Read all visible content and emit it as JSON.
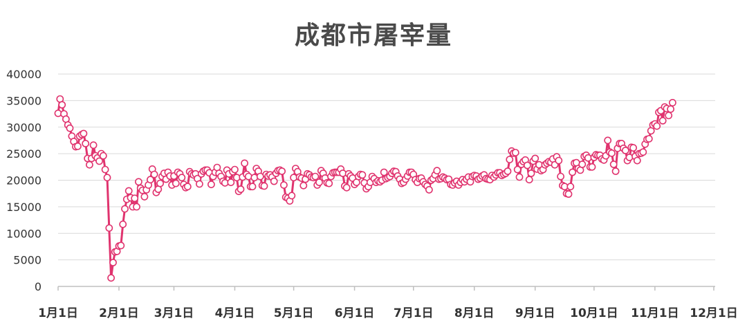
{
  "chart_data": {
    "type": "line",
    "title": "成都市屠宰量",
    "xlabel": "",
    "ylabel": "",
    "x_tick_labels": [
      "1月1日",
      "2月1日",
      "3月1日",
      "4月1日",
      "5月1日",
      "6月1日",
      "7月1日",
      "8月1日",
      "9月1日",
      "10月1日",
      "11月1日",
      "12月1日"
    ],
    "y_ticks": [
      0,
      5000,
      10000,
      15000,
      20000,
      25000,
      30000,
      35000,
      40000
    ],
    "ylim": [
      0,
      40000
    ],
    "x_unit": "day of year (1 = Jan 1)",
    "xlim": [
      1,
      335
    ],
    "grid": true,
    "legend": "none",
    "colors": {
      "line": "#e0336e",
      "marker_fill": "#ffffff",
      "grid": "#d9d9d9",
      "axis": "#bfbfbf"
    },
    "series": [
      {
        "points": [
          [
            1,
            32600
          ],
          [
            2,
            35300
          ],
          [
            3,
            34200
          ],
          [
            4,
            32500
          ],
          [
            5,
            31500
          ],
          [
            6,
            30400
          ],
          [
            7,
            29800
          ],
          [
            8,
            28300
          ],
          [
            9,
            27300
          ],
          [
            10,
            26300
          ],
          [
            11,
            26400
          ],
          [
            12,
            28300
          ],
          [
            13,
            28600
          ],
          [
            14,
            28800
          ],
          [
            15,
            26900
          ],
          [
            16,
            24100
          ],
          [
            17,
            22900
          ],
          [
            18,
            24100
          ],
          [
            19,
            26600
          ],
          [
            20,
            24600
          ],
          [
            21,
            24200
          ],
          [
            22,
            23600
          ],
          [
            23,
            25000
          ],
          [
            24,
            24600
          ],
          [
            25,
            22000
          ],
          [
            26,
            20500
          ],
          [
            27,
            11000
          ],
          [
            28,
            1600
          ],
          [
            29,
            4500
          ],
          [
            30,
            6500
          ],
          [
            31,
            6600
          ],
          [
            32,
            7600
          ],
          [
            33,
            7700
          ],
          [
            34,
            11700
          ],
          [
            35,
            14600
          ],
          [
            36,
            16400
          ],
          [
            37,
            18000
          ],
          [
            38,
            16700
          ],
          [
            39,
            15000
          ],
          [
            40,
            16600
          ],
          [
            41,
            15000
          ],
          [
            42,
            19700
          ],
          [
            43,
            18500
          ],
          [
            44,
            18100
          ],
          [
            45,
            16900
          ],
          [
            46,
            18200
          ],
          [
            47,
            19100
          ],
          [
            48,
            20100
          ],
          [
            49,
            22100
          ],
          [
            50,
            21100
          ],
          [
            51,
            17700
          ],
          [
            52,
            18300
          ],
          [
            53,
            19400
          ],
          [
            54,
            20700
          ],
          [
            55,
            21300
          ],
          [
            56,
            20200
          ],
          [
            57,
            21500
          ],
          [
            58,
            20800
          ],
          [
            59,
            19100
          ],
          [
            60,
            20800
          ],
          [
            61,
            19400
          ],
          [
            62,
            21500
          ],
          [
            63,
            21200
          ],
          [
            64,
            20500
          ],
          [
            65,
            19200
          ],
          [
            66,
            18600
          ],
          [
            67,
            18800
          ],
          [
            68,
            21600
          ],
          [
            69,
            21200
          ],
          [
            70,
            21000
          ],
          [
            71,
            21200
          ],
          [
            72,
            20300
          ],
          [
            73,
            19300
          ],
          [
            74,
            21200
          ],
          [
            75,
            21700
          ],
          [
            76,
            21900
          ],
          [
            77,
            21900
          ],
          [
            78,
            21400
          ],
          [
            79,
            19200
          ],
          [
            80,
            20700
          ],
          [
            81,
            21500
          ],
          [
            82,
            22400
          ],
          [
            83,
            21300
          ],
          [
            84,
            20700
          ],
          [
            85,
            19800
          ],
          [
            86,
            19500
          ],
          [
            87,
            21900
          ],
          [
            88,
            21200
          ],
          [
            89,
            19600
          ],
          [
            90,
            21600
          ],
          [
            91,
            22000
          ],
          [
            92,
            20500
          ],
          [
            93,
            17900
          ],
          [
            94,
            18300
          ],
          [
            95,
            20600
          ],
          [
            96,
            23200
          ],
          [
            97,
            21100
          ],
          [
            98,
            20700
          ],
          [
            99,
            18800
          ],
          [
            100,
            18800
          ],
          [
            101,
            20500
          ],
          [
            102,
            22200
          ],
          [
            103,
            21700
          ],
          [
            104,
            20700
          ],
          [
            105,
            19000
          ],
          [
            106,
            18900
          ],
          [
            107,
            21100
          ],
          [
            108,
            20800
          ],
          [
            109,
            21000
          ],
          [
            110,
            20600
          ],
          [
            111,
            19800
          ],
          [
            112,
            21300
          ],
          [
            113,
            21800
          ],
          [
            114,
            21900
          ],
          [
            115,
            21700
          ],
          [
            116,
            19100
          ],
          [
            117,
            16800
          ],
          [
            118,
            16600
          ],
          [
            119,
            16100
          ],
          [
            120,
            17100
          ],
          [
            121,
            20500
          ],
          [
            122,
            22200
          ],
          [
            123,
            21600
          ],
          [
            124,
            20600
          ],
          [
            125,
            20400
          ],
          [
            126,
            19000
          ],
          [
            127,
            20200
          ],
          [
            128,
            21200
          ],
          [
            129,
            21000
          ],
          [
            130,
            20600
          ],
          [
            131,
            20500
          ],
          [
            132,
            20700
          ],
          [
            133,
            19100
          ],
          [
            134,
            19600
          ],
          [
            135,
            21800
          ],
          [
            136,
            21300
          ],
          [
            137,
            20400
          ],
          [
            138,
            19500
          ],
          [
            139,
            19400
          ],
          [
            140,
            20700
          ],
          [
            141,
            21400
          ],
          [
            142,
            21500
          ],
          [
            143,
            21500
          ],
          [
            144,
            21500
          ],
          [
            145,
            22100
          ],
          [
            146,
            21300
          ],
          [
            147,
            18900
          ],
          [
            148,
            18600
          ],
          [
            149,
            21200
          ],
          [
            150,
            20800
          ],
          [
            151,
            20400
          ],
          [
            152,
            19200
          ],
          [
            153,
            19600
          ],
          [
            154,
            20700
          ],
          [
            155,
            21100
          ],
          [
            156,
            21000
          ],
          [
            157,
            19500
          ],
          [
            158,
            18400
          ],
          [
            159,
            18800
          ],
          [
            160,
            19600
          ],
          [
            161,
            20700
          ],
          [
            162,
            20300
          ],
          [
            163,
            19600
          ],
          [
            164,
            19900
          ],
          [
            165,
            19700
          ],
          [
            166,
            20000
          ],
          [
            167,
            21500
          ],
          [
            168,
            20300
          ],
          [
            169,
            20500
          ],
          [
            170,
            20700
          ],
          [
            171,
            21300
          ],
          [
            172,
            21700
          ],
          [
            173,
            21600
          ],
          [
            174,
            20800
          ],
          [
            175,
            20200
          ],
          [
            176,
            19400
          ],
          [
            177,
            19600
          ],
          [
            178,
            20200
          ],
          [
            179,
            20800
          ],
          [
            180,
            21500
          ],
          [
            181,
            21500
          ],
          [
            182,
            21100
          ],
          [
            183,
            20100
          ],
          [
            184,
            19600
          ],
          [
            185,
            20300
          ],
          [
            186,
            20400
          ],
          [
            187,
            19700
          ],
          [
            188,
            19200
          ],
          [
            189,
            18900
          ],
          [
            190,
            18200
          ],
          [
            191,
            20000
          ],
          [
            192,
            20300
          ],
          [
            193,
            21000
          ],
          [
            194,
            21800
          ],
          [
            195,
            20200
          ],
          [
            196,
            20300
          ],
          [
            197,
            20600
          ],
          [
            198,
            20400
          ],
          [
            199,
            20100
          ],
          [
            200,
            20200
          ],
          [
            201,
            19200
          ],
          [
            202,
            19100
          ],
          [
            203,
            19500
          ],
          [
            204,
            19800
          ],
          [
            205,
            19100
          ],
          [
            206,
            19600
          ],
          [
            207,
            20100
          ],
          [
            208,
            19700
          ],
          [
            209,
            20200
          ],
          [
            210,
            20600
          ],
          [
            211,
            19700
          ],
          [
            212,
            20700
          ],
          [
            213,
            20900
          ],
          [
            214,
            20800
          ],
          [
            215,
            20200
          ],
          [
            216,
            20400
          ],
          [
            217,
            20800
          ],
          [
            218,
            21000
          ],
          [
            219,
            20300
          ],
          [
            220,
            20200
          ],
          [
            221,
            20100
          ],
          [
            222,
            20900
          ],
          [
            223,
            20600
          ],
          [
            224,
            21000
          ],
          [
            225,
            21400
          ],
          [
            226,
            21400
          ],
          [
            227,
            20900
          ],
          [
            228,
            21100
          ],
          [
            229,
            21300
          ],
          [
            230,
            21700
          ],
          [
            231,
            23900
          ],
          [
            232,
            25500
          ],
          [
            233,
            25100
          ],
          [
            234,
            25200
          ],
          [
            235,
            22000
          ],
          [
            236,
            20600
          ],
          [
            237,
            23000
          ],
          [
            238,
            23500
          ],
          [
            239,
            23800
          ],
          [
            240,
            22800
          ],
          [
            241,
            20100
          ],
          [
            242,
            21300
          ],
          [
            243,
            23600
          ],
          [
            244,
            24100
          ],
          [
            245,
            22100
          ],
          [
            246,
            22900
          ],
          [
            247,
            21800
          ],
          [
            248,
            22000
          ],
          [
            249,
            22900
          ],
          [
            250,
            23200
          ],
          [
            251,
            23500
          ],
          [
            252,
            23400
          ],
          [
            253,
            24000
          ],
          [
            254,
            22900
          ],
          [
            255,
            24400
          ],
          [
            256,
            23700
          ],
          [
            257,
            20700
          ],
          [
            258,
            19000
          ],
          [
            259,
            18800
          ],
          [
            260,
            17500
          ],
          [
            261,
            17400
          ],
          [
            262,
            18800
          ],
          [
            263,
            21500
          ],
          [
            264,
            23200
          ],
          [
            265,
            23300
          ],
          [
            266,
            22200
          ],
          [
            267,
            21900
          ],
          [
            268,
            23000
          ],
          [
            269,
            24500
          ],
          [
            270,
            24700
          ],
          [
            271,
            24200
          ],
          [
            272,
            22500
          ],
          [
            273,
            22500
          ],
          [
            274,
            24300
          ],
          [
            275,
            24800
          ],
          [
            276,
            24700
          ],
          [
            277,
            24700
          ],
          [
            278,
            24000
          ],
          [
            279,
            23800
          ],
          [
            280,
            24600
          ],
          [
            281,
            27500
          ],
          [
            282,
            25300
          ],
          [
            283,
            25100
          ],
          [
            284,
            23000
          ],
          [
            285,
            21700
          ],
          [
            286,
            26000
          ],
          [
            287,
            26900
          ],
          [
            288,
            26900
          ],
          [
            289,
            26000
          ],
          [
            290,
            25600
          ],
          [
            291,
            23700
          ],
          [
            292,
            24300
          ],
          [
            293,
            26200
          ],
          [
            294,
            26100
          ],
          [
            295,
            24500
          ],
          [
            296,
            23700
          ],
          [
            297,
            25000
          ],
          [
            298,
            25100
          ],
          [
            299,
            25300
          ],
          [
            300,
            26800
          ],
          [
            301,
            27700
          ],
          [
            302,
            27800
          ],
          [
            303,
            29300
          ],
          [
            304,
            30400
          ],
          [
            305,
            30600
          ],
          [
            306,
            30200
          ],
          [
            307,
            32800
          ],
          [
            308,
            33100
          ],
          [
            309,
            31200
          ],
          [
            310,
            33800
          ],
          [
            311,
            33500
          ],
          [
            312,
            32200
          ],
          [
            313,
            33400
          ],
          [
            314,
            34600
          ]
        ]
      }
    ]
  }
}
